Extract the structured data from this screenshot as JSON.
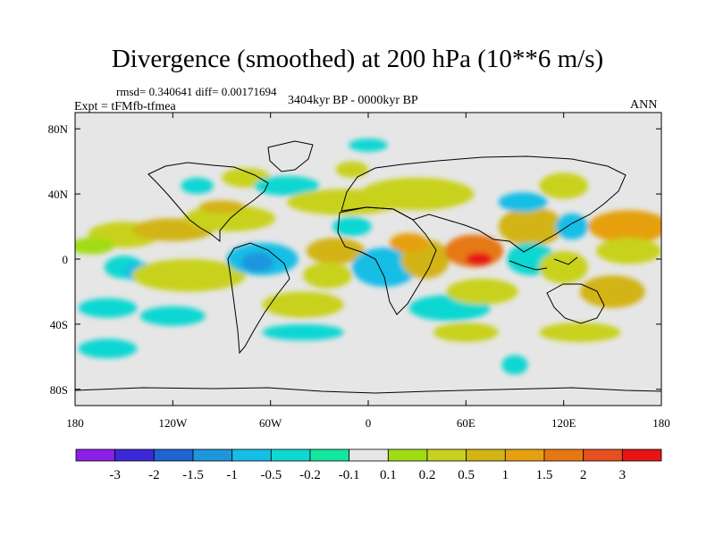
{
  "chart_data": {
    "type": "heatmap",
    "title": "Divergence (smoothed) at 200 hPa (10**6 m/s)",
    "stats_text": "rmsd= 0.340641 diff= 0.00171694",
    "experiment_text": "Expt = tFMfb-tfmea",
    "period_text": "3404kyr BP - 0000kyr BP",
    "season_text": "ANN",
    "x_axis": {
      "range": [
        -180,
        180
      ],
      "ticks": [
        {
          "value": -180,
          "label": "180"
        },
        {
          "value": -120,
          "label": "120W"
        },
        {
          "value": -60,
          "label": "60W"
        },
        {
          "value": 0,
          "label": "0"
        },
        {
          "value": 60,
          "label": "60E"
        },
        {
          "value": 120,
          "label": "120E"
        },
        {
          "value": 180,
          "label": "180"
        }
      ]
    },
    "y_axis": {
      "range": [
        -90,
        90
      ],
      "ticks": [
        {
          "value": 80,
          "label": "80N"
        },
        {
          "value": 40,
          "label": "40N"
        },
        {
          "value": 0,
          "label": "0"
        },
        {
          "value": -40,
          "label": "40S"
        },
        {
          "value": -80,
          "label": "80S"
        }
      ]
    },
    "colorbar": {
      "colors": [
        "#8c1ee6",
        "#3c28d8",
        "#1e64d2",
        "#1e96dc",
        "#14bee6",
        "#0fd7d2",
        "#14e6a0",
        "#e6e6e6",
        "#a0dc14",
        "#c8d21e",
        "#d2b414",
        "#e6a00f",
        "#e67814",
        "#e6501e",
        "#e61414"
      ],
      "labels": [
        "-3",
        "-2",
        "-1.5",
        "-1",
        "-0.5",
        "-0.2",
        "-0.1",
        "0.1",
        "0.2",
        "0.5",
        "1",
        "1.5",
        "2",
        "3"
      ]
    },
    "regions": [
      {
        "lon": -150,
        "lat": 15,
        "rx": 22,
        "ry": 8,
        "level": 9
      },
      {
        "lon": -120,
        "lat": 18,
        "rx": 25,
        "ry": 7,
        "level": 10
      },
      {
        "lon": -170,
        "lat": 8,
        "rx": 14,
        "ry": 5,
        "level": 8
      },
      {
        "lon": -150,
        "lat": -5,
        "rx": 12,
        "ry": 7,
        "level": 5
      },
      {
        "lon": -140,
        "lat": -8,
        "rx": 10,
        "ry": 6,
        "level": 4
      },
      {
        "lon": -160,
        "lat": -30,
        "rx": 18,
        "ry": 6,
        "level": 5
      },
      {
        "lon": -110,
        "lat": -10,
        "rx": 35,
        "ry": 10,
        "level": 9
      },
      {
        "lon": -85,
        "lat": 25,
        "rx": 28,
        "ry": 8,
        "level": 9
      },
      {
        "lon": -90,
        "lat": 32,
        "rx": 14,
        "ry": 4,
        "level": 10
      },
      {
        "lon": -105,
        "lat": 45,
        "rx": 10,
        "ry": 5,
        "level": 5
      },
      {
        "lon": -75,
        "lat": 50,
        "rx": 15,
        "ry": 6,
        "level": 9
      },
      {
        "lon": -50,
        "lat": 45,
        "rx": 20,
        "ry": 6,
        "level": 5
      },
      {
        "lon": -15,
        "lat": 35,
        "rx": 35,
        "ry": 8,
        "level": 9
      },
      {
        "lon": -10,
        "lat": 20,
        "rx": 12,
        "ry": 6,
        "level": 5
      },
      {
        "lon": -65,
        "lat": 0,
        "rx": 22,
        "ry": 10,
        "level": 4
      },
      {
        "lon": -68,
        "lat": -2,
        "rx": 10,
        "ry": 6,
        "level": 3
      },
      {
        "lon": -20,
        "lat": 5,
        "rx": 18,
        "ry": 8,
        "level": 10
      },
      {
        "lon": -25,
        "lat": -10,
        "rx": 15,
        "ry": 8,
        "level": 9
      },
      {
        "lon": -40,
        "lat": -28,
        "rx": 25,
        "ry": 8,
        "level": 9
      },
      {
        "lon": -120,
        "lat": -35,
        "rx": 20,
        "ry": 6,
        "level": 5
      },
      {
        "lon": -40,
        "lat": -45,
        "rx": 25,
        "ry": 5,
        "level": 5
      },
      {
        "lon": 10,
        "lat": -5,
        "rx": 20,
        "ry": 12,
        "level": 4
      },
      {
        "lon": 35,
        "lat": 0,
        "rx": 15,
        "ry": 12,
        "level": 10
      },
      {
        "lon": 25,
        "lat": 10,
        "rx": 12,
        "ry": 6,
        "level": 11
      },
      {
        "lon": 30,
        "lat": 40,
        "rx": 35,
        "ry": 10,
        "level": 9
      },
      {
        "lon": 50,
        "lat": -30,
        "rx": 25,
        "ry": 8,
        "level": 5
      },
      {
        "lon": 65,
        "lat": 5,
        "rx": 18,
        "ry": 10,
        "level": 12
      },
      {
        "lon": 68,
        "lat": 0,
        "rx": 8,
        "ry": 4,
        "level": 14
      },
      {
        "lon": 70,
        "lat": -20,
        "rx": 22,
        "ry": 8,
        "level": 9
      },
      {
        "lon": 60,
        "lat": -45,
        "rx": 20,
        "ry": 6,
        "level": 9
      },
      {
        "lon": 100,
        "lat": 20,
        "rx": 20,
        "ry": 12,
        "level": 10
      },
      {
        "lon": 100,
        "lat": 0,
        "rx": 15,
        "ry": 10,
        "level": 5
      },
      {
        "lon": 120,
        "lat": -5,
        "rx": 15,
        "ry": 10,
        "level": 9
      },
      {
        "lon": 125,
        "lat": 20,
        "rx": 10,
        "ry": 8,
        "level": 4
      },
      {
        "lon": 160,
        "lat": 20,
        "rx": 25,
        "ry": 10,
        "level": 11
      },
      {
        "lon": 160,
        "lat": 5,
        "rx": 20,
        "ry": 8,
        "level": 9
      },
      {
        "lon": 150,
        "lat": -20,
        "rx": 20,
        "ry": 10,
        "level": 10
      },
      {
        "lon": 130,
        "lat": -45,
        "rx": 25,
        "ry": 6,
        "level": 9
      },
      {
        "lon": 120,
        "lat": 45,
        "rx": 15,
        "ry": 8,
        "level": 9
      },
      {
        "lon": 95,
        "lat": 35,
        "rx": 15,
        "ry": 6,
        "level": 4
      },
      {
        "lon": 90,
        "lat": -65,
        "rx": 8,
        "ry": 6,
        "level": 5
      },
      {
        "lon": -160,
        "lat": -55,
        "rx": 18,
        "ry": 6,
        "level": 5
      },
      {
        "lon": 0,
        "lat": 70,
        "rx": 12,
        "ry": 4,
        "level": 5
      },
      {
        "lon": -10,
        "lat": 55,
        "rx": 10,
        "ry": 5,
        "level": 9
      }
    ]
  }
}
